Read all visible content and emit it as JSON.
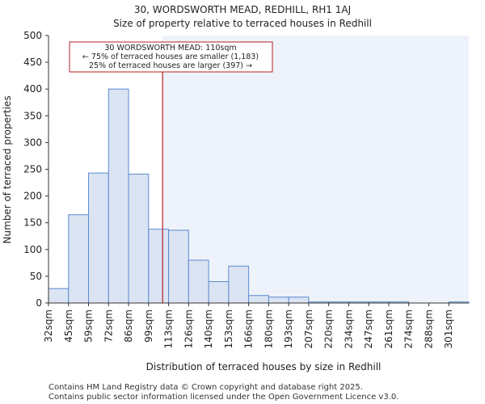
{
  "chart_data": {
    "type": "bar",
    "title": "30, WORDSWORTH MEAD, REDHILL, RH1 1AJ",
    "subtitle": "Size of property relative to terraced houses in Redhill",
    "xlabel": "Distribution of terraced houses by size in Redhill",
    "ylabel": "Number of terraced properties",
    "categories": [
      "32sqm",
      "45sqm",
      "59sqm",
      "72sqm",
      "86sqm",
      "99sqm",
      "113sqm",
      "126sqm",
      "140sqm",
      "153sqm",
      "166sqm",
      "180sqm",
      "193sqm",
      "207sqm",
      "220sqm",
      "234sqm",
      "247sqm",
      "261sqm",
      "274sqm",
      "288sqm",
      "301sqm"
    ],
    "values": [
      27,
      165,
      243,
      400,
      241,
      138,
      136,
      80,
      40,
      69,
      14,
      11,
      11,
      2,
      2,
      2,
      2,
      2,
      0,
      0,
      2
    ],
    "ylim": [
      0,
      500
    ],
    "yticks": [
      0,
      50,
      100,
      150,
      200,
      250,
      300,
      350,
      400,
      450,
      500
    ],
    "subject_bin_position": 5.7,
    "annotation": {
      "line1": "30 WORDSWORTH MEAD: 110sqm",
      "line2": "← 75% of terraced houses are smaller (1,183)",
      "line3": "25% of terraced houses are larger (397) →"
    },
    "colors": {
      "bar_fill": "#dbe4f3",
      "bar_stroke": "#5b8bd0",
      "highlight_bg": "#eef2fa",
      "marker": "#b22222",
      "axis": "#333333"
    }
  },
  "footer": {
    "line1": "Contains HM Land Registry data © Crown copyright and database right 2025.",
    "line2": "Contains public sector information licensed under the Open Government Licence v3.0."
  }
}
